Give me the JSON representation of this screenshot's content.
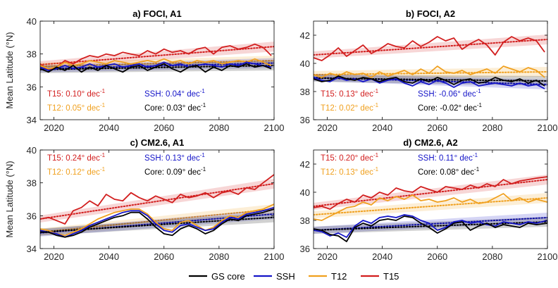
{
  "colors": {
    "core": "#000000",
    "ssh": "#1414c8",
    "t12": "#f0a01e",
    "t15": "#d21e1e"
  },
  "legend": {
    "placement": "bottom-center",
    "items": [
      {
        "label": "GS core",
        "key": "core"
      },
      {
        "label": "SSH",
        "key": "ssh"
      },
      {
        "label": "T12",
        "key": "t12"
      },
      {
        "label": "T15",
        "key": "t15"
      }
    ]
  },
  "chart_data": [
    {
      "type": "line",
      "title": "a) FOCI, A1",
      "ylabel": "Mean Latitude (°N)",
      "xlim": [
        2015,
        2100
      ],
      "ylim": [
        34,
        40
      ],
      "xticks": [
        2020,
        2040,
        2060,
        2080,
        2100
      ],
      "xticklabels": [
        "2020",
        "2040",
        "2060",
        "2080",
        "2100"
      ],
      "yticks": [
        34,
        36,
        38,
        40
      ],
      "x": [
        2015,
        2018,
        2021,
        2024,
        2027,
        2030,
        2033,
        2036,
        2039,
        2042,
        2045,
        2048,
        2051,
        2054,
        2057,
        2060,
        2063,
        2066,
        2069,
        2072,
        2075,
        2078,
        2081,
        2084,
        2087,
        2090,
        2093,
        2096,
        2099
      ],
      "series": [
        {
          "name": "T15",
          "color_key": "t15",
          "values": [
            37.4,
            37.0,
            37.2,
            37.6,
            37.4,
            37.7,
            37.9,
            37.8,
            38.0,
            37.9,
            38.1,
            38.0,
            37.9,
            38.2,
            38.0,
            38.3,
            38.1,
            38.2,
            38.0,
            38.3,
            38.4,
            38.0,
            38.4,
            38.5,
            38.3,
            38.4,
            38.6,
            38.4,
            37.9
          ]
        },
        {
          "name": "T12",
          "color_key": "t12",
          "values": [
            37.3,
            37.1,
            37.2,
            37.5,
            37.3,
            37.4,
            37.6,
            37.5,
            37.4,
            37.6,
            37.5,
            37.4,
            37.5,
            37.6,
            37.5,
            37.7,
            37.5,
            37.6,
            37.4,
            37.6,
            37.5,
            37.6,
            37.4,
            37.5,
            37.6,
            37.5,
            37.7,
            37.5,
            37.3
          ]
        },
        {
          "name": "SSH",
          "color_key": "ssh",
          "values": [
            37.2,
            37.0,
            37.1,
            37.3,
            37.1,
            37.2,
            37.4,
            37.2,
            37.3,
            37.4,
            37.2,
            37.3,
            37.4,
            37.2,
            37.3,
            37.5,
            37.3,
            37.4,
            37.2,
            37.3,
            37.4,
            37.3,
            37.2,
            37.4,
            37.3,
            37.5,
            37.4,
            37.3,
            37.2
          ]
        },
        {
          "name": "GS core",
          "color_key": "core",
          "values": [
            37.1,
            36.9,
            37.2,
            37.0,
            37.3,
            36.9,
            37.2,
            37.0,
            37.3,
            37.1,
            36.9,
            37.2,
            37.3,
            37.0,
            37.2,
            37.4,
            37.1,
            36.9,
            37.2,
            37.3,
            36.9,
            37.2,
            37.0,
            37.3,
            37.2,
            37.4,
            37.2,
            37.3,
            37.1
          ]
        }
      ],
      "trends": [
        {
          "color_key": "t15",
          "y0": 37.35,
          "y1": 38.45
        },
        {
          "color_key": "t12",
          "y0": 37.25,
          "y1": 37.6
        },
        {
          "color_key": "ssh",
          "y0": 37.1,
          "y1": 37.45
        },
        {
          "color_key": "core",
          "y0": 37.05,
          "y1": 37.3
        }
      ],
      "annotations": [
        {
          "label": "T15",
          "value": "0.10",
          "unit": "° dec",
          "exp": "-1",
          "color_key": "t15",
          "col": 0,
          "row": 0
        },
        {
          "label": "T12",
          "value": "0.05",
          "unit": "° dec",
          "exp": "-1",
          "color_key": "t12",
          "col": 0,
          "row": 1
        },
        {
          "label": "SSH",
          "value": "0.04",
          "unit": "° dec",
          "exp": "-1",
          "color_key": "ssh",
          "col": 1,
          "row": 0
        },
        {
          "label": "Core",
          "value": "0.03",
          "unit": "° dec",
          "exp": "-1",
          "color_key": "core",
          "col": 1,
          "row": 1
        }
      ],
      "annotation_anchor": "bottom"
    },
    {
      "type": "line",
      "title": "b) FOCI, A2",
      "ylabel": "",
      "xlim": [
        2015,
        2100
      ],
      "ylim": [
        36,
        43
      ],
      "xticks": [
        2020,
        2040,
        2060,
        2080,
        2100
      ],
      "xticklabels": [
        "2020",
        "2040",
        "2060",
        "2080",
        "2100"
      ],
      "yticks": [
        36,
        38,
        40,
        42
      ],
      "x": [
        2015,
        2018,
        2021,
        2024,
        2027,
        2030,
        2033,
        2036,
        2039,
        2042,
        2045,
        2048,
        2051,
        2054,
        2057,
        2060,
        2063,
        2066,
        2069,
        2072,
        2075,
        2078,
        2081,
        2084,
        2087,
        2090,
        2093,
        2096,
        2099
      ],
      "series": [
        {
          "name": "T15",
          "color_key": "t15",
          "values": [
            40.4,
            40.2,
            40.6,
            41.1,
            40.5,
            40.9,
            41.3,
            40.7,
            41.0,
            41.4,
            41.2,
            41.1,
            41.6,
            41.2,
            41.5,
            41.9,
            41.6,
            41.8,
            41.0,
            41.4,
            41.7,
            41.3,
            40.6,
            41.5,
            41.9,
            41.6,
            41.8,
            41.6,
            40.8
          ]
        },
        {
          "name": "T12",
          "color_key": "t12",
          "values": [
            39.2,
            39.0,
            39.3,
            39.1,
            39.4,
            39.2,
            39.3,
            39.0,
            39.4,
            39.1,
            39.3,
            39.5,
            39.2,
            39.6,
            39.3,
            39.8,
            39.4,
            39.3,
            39.5,
            39.2,
            39.4,
            39.6,
            39.3,
            39.8,
            39.6,
            39.4,
            39.7,
            39.5,
            39.0
          ]
        },
        {
          "name": "SSH",
          "color_key": "ssh",
          "values": [
            39.0,
            38.8,
            38.7,
            39.0,
            38.8,
            38.9,
            38.7,
            38.9,
            38.6,
            38.8,
            38.9,
            38.6,
            38.4,
            38.7,
            38.5,
            38.8,
            38.6,
            38.3,
            38.6,
            38.7,
            38.4,
            38.5,
            38.6,
            38.5,
            38.4,
            38.6,
            38.4,
            38.5,
            38.2
          ]
        },
        {
          "name": "GS core",
          "color_key": "core",
          "values": [
            38.9,
            38.7,
            38.8,
            39.1,
            38.9,
            38.8,
            39.0,
            38.9,
            38.7,
            38.9,
            39.0,
            38.7,
            38.6,
            38.9,
            38.7,
            39.0,
            38.8,
            38.5,
            38.8,
            38.9,
            38.6,
            38.7,
            39.0,
            38.8,
            38.7,
            38.9,
            38.6,
            38.8,
            38.4
          ]
        }
      ],
      "trends": [
        {
          "color_key": "t15",
          "y0": 40.6,
          "y1": 41.7
        },
        {
          "color_key": "t12",
          "y0": 39.2,
          "y1": 39.4
        },
        {
          "color_key": "ssh",
          "y0": 39.0,
          "y1": 38.5
        },
        {
          "color_key": "core",
          "y0": 38.95,
          "y1": 38.75
        }
      ],
      "annotations": [
        {
          "label": "T15",
          "value": "0.13",
          "unit": "° dec",
          "exp": "-1",
          "color_key": "t15",
          "col": 0,
          "row": 0
        },
        {
          "label": "T12",
          "value": "0.02",
          "unit": "° dec",
          "exp": "-1",
          "color_key": "t12",
          "col": 0,
          "row": 1
        },
        {
          "label": "SSH",
          "value": "-0.06",
          "unit": "° dec",
          "exp": "-1",
          "color_key": "ssh",
          "col": 1,
          "row": 0
        },
        {
          "label": "Core",
          "value": "-0.02",
          "unit": "° dec",
          "exp": "-1",
          "color_key": "core",
          "col": 1,
          "row": 1
        }
      ],
      "annotation_anchor": "bottom"
    },
    {
      "type": "line",
      "title": "c) CM2.6, A1",
      "ylabel": "Mean Latitude (°N)",
      "xlim": [
        2015,
        2100
      ],
      "ylim": [
        34,
        40
      ],
      "xticks": [
        2020,
        2040,
        2060,
        2080,
        2100
      ],
      "xticklabels": [
        "2020",
        "2040",
        "2060",
        "2080",
        "2100"
      ],
      "yticks": [
        34,
        36,
        38,
        40
      ],
      "x": [
        2015,
        2018,
        2021,
        2024,
        2027,
        2030,
        2033,
        2036,
        2039,
        2042,
        2045,
        2048,
        2051,
        2054,
        2057,
        2060,
        2063,
        2066,
        2069,
        2072,
        2075,
        2078,
        2081,
        2084,
        2087,
        2090,
        2093,
        2096,
        2100
      ],
      "series": [
        {
          "name": "T15",
          "color_key": "t15",
          "values": [
            35.8,
            35.9,
            35.7,
            35.5,
            36.3,
            36.5,
            36.9,
            36.6,
            37.3,
            37.0,
            36.9,
            37.4,
            37.1,
            36.9,
            37.2,
            37.0,
            36.8,
            37.3,
            37.1,
            37.2,
            37.4,
            37.1,
            37.4,
            37.5,
            37.3,
            37.7,
            37.6,
            38.0,
            38.5
          ]
        },
        {
          "name": "T12",
          "color_key": "t12",
          "values": [
            35.2,
            35.1,
            34.9,
            34.8,
            35.0,
            35.2,
            35.5,
            35.8,
            36.0,
            36.2,
            36.3,
            36.4,
            36.4,
            36.1,
            35.6,
            35.2,
            35.1,
            35.6,
            35.7,
            35.4,
            35.1,
            35.3,
            35.7,
            36.0,
            35.9,
            36.2,
            36.3,
            36.4,
            36.7
          ]
        },
        {
          "name": "SSH",
          "color_key": "ssh",
          "values": [
            35.1,
            35.0,
            34.9,
            34.7,
            34.9,
            35.1,
            35.4,
            35.6,
            35.8,
            36.0,
            36.2,
            36.3,
            36.3,
            36.0,
            35.5,
            35.1,
            35.0,
            35.4,
            35.5,
            35.3,
            35.1,
            35.2,
            35.6,
            35.9,
            35.8,
            36.1,
            36.2,
            36.3,
            36.5
          ]
        },
        {
          "name": "GS core",
          "color_key": "core",
          "values": [
            35.0,
            35.0,
            34.8,
            34.7,
            34.8,
            35.0,
            35.3,
            35.5,
            35.7,
            35.9,
            36.0,
            36.2,
            36.2,
            35.8,
            35.3,
            34.9,
            34.8,
            35.2,
            35.4,
            35.2,
            34.9,
            35.1,
            35.5,
            35.8,
            35.7,
            36.0,
            36.1,
            36.2,
            36.4
          ]
        }
      ],
      "trends": [
        {
          "color_key": "t15",
          "y0": 35.8,
          "y1": 37.95
        },
        {
          "color_key": "t12",
          "y0": 35.0,
          "y1": 36.4
        },
        {
          "color_key": "ssh",
          "y0": 34.95,
          "y1": 36.1
        },
        {
          "color_key": "core",
          "y0": 35.0,
          "y1": 35.9
        }
      ],
      "annotations": [
        {
          "label": "T15",
          "value": "0.24",
          "unit": "° dec",
          "exp": "-1",
          "color_key": "t15",
          "col": 0,
          "row": 0
        },
        {
          "label": "T12",
          "value": "0.12",
          "unit": "° dec",
          "exp": "-1",
          "color_key": "t12",
          "col": 0,
          "row": 1
        },
        {
          "label": "SSH",
          "value": "0.13",
          "unit": "° dec",
          "exp": "-1",
          "color_key": "ssh",
          "col": 1,
          "row": 0
        },
        {
          "label": "Core",
          "value": "0.09",
          "unit": "° dec",
          "exp": "-1",
          "color_key": "core",
          "col": 1,
          "row": 1
        }
      ],
      "annotation_anchor": "top"
    },
    {
      "type": "line",
      "title": "d) CM2.6, A2",
      "ylabel": "",
      "xlim": [
        2015,
        2100
      ],
      "ylim": [
        36,
        43
      ],
      "xticks": [
        2020,
        2040,
        2060,
        2080,
        2100
      ],
      "xticklabels": [
        "2020",
        "2040",
        "2060",
        "2080",
        "2100"
      ],
      "yticks": [
        36,
        38,
        40,
        42
      ],
      "x": [
        2015,
        2018,
        2021,
        2024,
        2027,
        2030,
        2033,
        2036,
        2039,
        2042,
        2045,
        2048,
        2051,
        2054,
        2057,
        2060,
        2063,
        2066,
        2069,
        2072,
        2075,
        2078,
        2081,
        2084,
        2087,
        2090,
        2093,
        2096,
        2100
      ],
      "series": [
        {
          "name": "T15",
          "color_key": "t15",
          "values": [
            38.9,
            39.0,
            38.8,
            39.2,
            39.5,
            39.3,
            39.8,
            39.6,
            40.0,
            39.8,
            40.3,
            40.1,
            40.0,
            40.4,
            40.2,
            40.0,
            40.4,
            40.3,
            40.2,
            40.5,
            40.3,
            40.6,
            40.4,
            40.9,
            40.6,
            40.8,
            40.9,
            41.0,
            41.1
          ]
        },
        {
          "name": "T12",
          "color_key": "t12",
          "values": [
            38.1,
            38.0,
            38.3,
            38.6,
            38.9,
            39.0,
            39.3,
            39.1,
            39.6,
            39.4,
            39.7,
            39.5,
            39.8,
            39.4,
            39.5,
            39.3,
            39.4,
            39.6,
            39.3,
            39.5,
            39.2,
            39.3,
            39.6,
            39.9,
            39.4,
            39.6,
            39.3,
            39.5,
            39.3
          ]
        },
        {
          "name": "SSH",
          "color_key": "ssh",
          "values": [
            37.3,
            37.2,
            36.9,
            37.1,
            36.8,
            37.6,
            38.0,
            37.8,
            38.2,
            38.3,
            38.2,
            38.4,
            38.3,
            38.0,
            37.8,
            37.3,
            37.5,
            37.9,
            38.0,
            37.8,
            37.9,
            37.7,
            37.6,
            37.9,
            37.8,
            37.7,
            37.9,
            37.8,
            38.0
          ]
        },
        {
          "name": "GS core",
          "color_key": "core",
          "values": [
            37.4,
            37.3,
            37.0,
            36.9,
            36.5,
            37.5,
            37.8,
            37.6,
            38.0,
            38.1,
            38.0,
            38.3,
            38.2,
            37.8,
            37.5,
            37.1,
            37.4,
            37.8,
            37.9,
            37.3,
            37.6,
            37.8,
            37.5,
            37.7,
            37.6,
            37.5,
            37.8,
            37.7,
            37.8
          ]
        }
      ],
      "trends": [
        {
          "color_key": "t15",
          "y0": 39.0,
          "y1": 40.9
        },
        {
          "color_key": "t12",
          "y0": 38.4,
          "y1": 39.6
        },
        {
          "color_key": "ssh",
          "y0": 37.3,
          "y1": 38.2
        },
        {
          "color_key": "core",
          "y0": 37.3,
          "y1": 37.9
        }
      ],
      "annotations": [
        {
          "label": "T15",
          "value": "0.20",
          "unit": "° dec",
          "exp": "-1",
          "color_key": "t15",
          "col": 0,
          "row": 0
        },
        {
          "label": "T12",
          "value": "0.13",
          "unit": "° dec",
          "exp": "-1",
          "color_key": "t12",
          "col": 0,
          "row": 1
        },
        {
          "label": "SSH",
          "value": "0.11",
          "unit": "° dec",
          "exp": "-1",
          "color_key": "ssh",
          "col": 1,
          "row": 0
        },
        {
          "label": "Core",
          "value": "0.08",
          "unit": "° dec",
          "exp": "-1",
          "color_key": "core",
          "col": 1,
          "row": 1
        }
      ],
      "annotation_anchor": "top"
    }
  ]
}
